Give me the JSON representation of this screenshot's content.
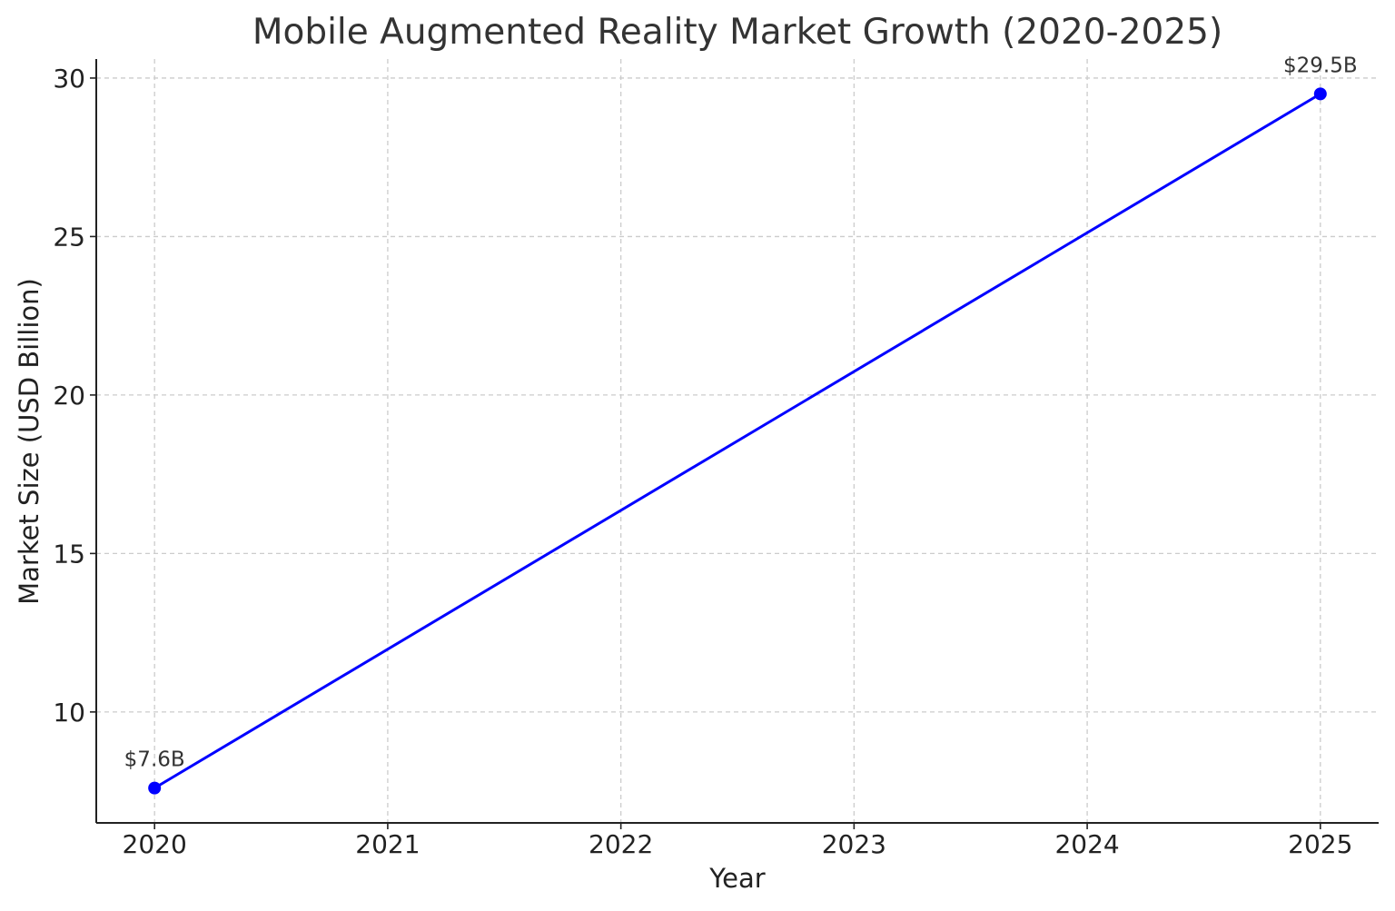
{
  "chart_data": {
    "type": "line",
    "title": "Mobile Augmented Reality Market Growth (2020-2025)",
    "xlabel": "Year",
    "ylabel": "Market Size (USD Billion)",
    "x": [
      2020,
      2025
    ],
    "x_ticks": [
      "2020",
      "2021",
      "2022",
      "2023",
      "2024",
      "2025"
    ],
    "y_ticks": [
      "10",
      "15",
      "20",
      "25",
      "30"
    ],
    "xlim": [
      2019.75,
      2025.25
    ],
    "ylim": [
      6.5,
      30.6
    ],
    "grid": true,
    "series": [
      {
        "values": [
          7.6,
          29.5
        ],
        "color": "#0000ff",
        "marker": "circle",
        "data_labels": [
          "$7.6B",
          "$29.5B"
        ]
      }
    ]
  }
}
